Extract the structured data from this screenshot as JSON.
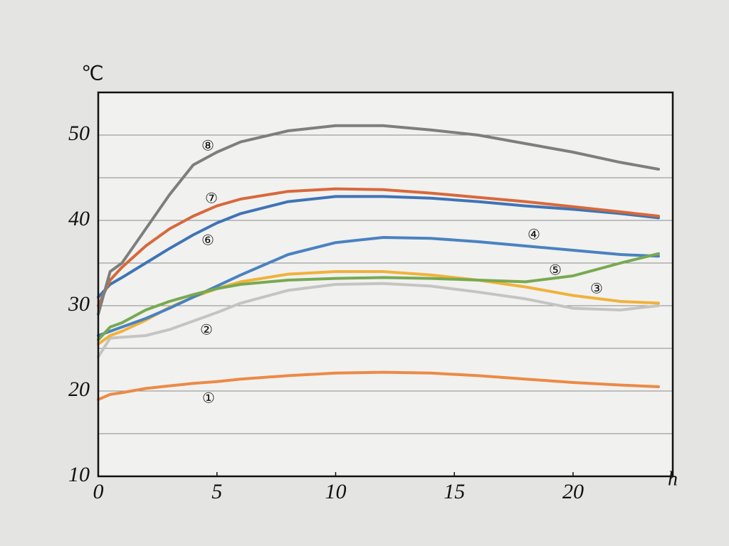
{
  "chart_data": {
    "type": "line",
    "y_label": "℃",
    "x_label": "h",
    "xlim": [
      0,
      24.2
    ],
    "ylim": [
      10,
      55
    ],
    "xticks": [
      0,
      5,
      10,
      15,
      20
    ],
    "yticks": [
      10,
      20,
      30,
      40,
      50
    ],
    "ygrid": [
      15,
      20,
      25,
      30,
      35,
      40,
      45,
      50
    ],
    "grid": true,
    "x": [
      0,
      0.5,
      1,
      2,
      3,
      4,
      5,
      6,
      8,
      10,
      12,
      14,
      16,
      18,
      20,
      22,
      23.6
    ],
    "series": [
      {
        "name": "①",
        "color": "#ec8a45",
        "values": [
          19,
          19.6,
          19.8,
          20.3,
          20.6,
          20.9,
          21.1,
          21.4,
          21.8,
          22.1,
          22.2,
          22.1,
          21.8,
          21.4,
          21,
          20.7,
          20.5
        ]
      },
      {
        "name": "②",
        "color": "#c4c4c2",
        "values": [
          24,
          26.2,
          26.3,
          26.5,
          27.2,
          28.2,
          29.2,
          30.3,
          31.8,
          32.5,
          32.6,
          32.3,
          31.6,
          30.8,
          29.7,
          29.5,
          30
        ]
      },
      {
        "name": "③",
        "color": "#f0b23a",
        "values": [
          25.5,
          26.5,
          27,
          28.3,
          29.8,
          31,
          32,
          32.8,
          33.7,
          34,
          34,
          33.6,
          33,
          32.2,
          31.2,
          30.5,
          30.3
        ]
      },
      {
        "name": "④",
        "color": "#4a82c0",
        "values": [
          26.5,
          27,
          27.5,
          28.5,
          29.7,
          31,
          32.3,
          33.6,
          36,
          37.4,
          38,
          37.9,
          37.5,
          37,
          36.5,
          36,
          35.8
        ]
      },
      {
        "name": "⑤",
        "color": "#78a950",
        "values": [
          26,
          27.5,
          28,
          29.5,
          30.5,
          31.3,
          32,
          32.5,
          33,
          33.2,
          33.3,
          33.2,
          33,
          32.8,
          33.5,
          35,
          36.1
        ]
      },
      {
        "name": "⑥",
        "color": "#3f74b5",
        "values": [
          31,
          32.5,
          33.3,
          35,
          36.7,
          38.3,
          39.7,
          40.8,
          42.2,
          42.8,
          42.8,
          42.6,
          42.2,
          41.7,
          41.3,
          40.8,
          40.3
        ]
      },
      {
        "name": "⑦",
        "color": "#d8683a",
        "values": [
          30,
          33,
          34.5,
          37,
          39,
          40.5,
          41.7,
          42.5,
          43.4,
          43.7,
          43.6,
          43.2,
          42.7,
          42.2,
          41.6,
          41,
          40.5
        ]
      },
      {
        "name": "⑧",
        "color": "#7e7e7e",
        "values": [
          29,
          34,
          35,
          39,
          43,
          46.5,
          48,
          49.2,
          50.5,
          51.1,
          51.1,
          50.6,
          50,
          49,
          48,
          46.8,
          46
        ]
      }
    ]
  }
}
